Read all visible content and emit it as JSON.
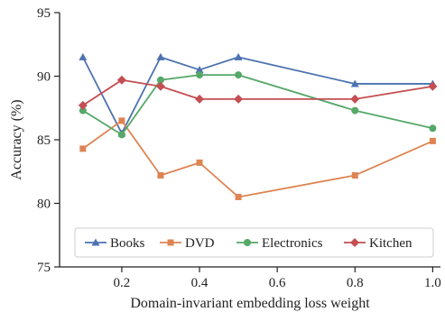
{
  "chart_data": {
    "type": "line",
    "title": "",
    "xlabel": "Domain-invariant embedding loss weight",
    "ylabel": "Accuracy (%)",
    "xlim": [
      0.04,
      1.02
    ],
    "ylim": [
      75,
      95
    ],
    "xticks": [
      0.2,
      0.4,
      0.6,
      0.8,
      1.0
    ],
    "xtick_labels": [
      "0.2",
      "0.4",
      "0.6",
      "0.8",
      "1.0"
    ],
    "yticks": [
      75,
      80,
      85,
      90,
      95
    ],
    "ytick_labels": [
      "75",
      "80",
      "85",
      "90",
      "95"
    ],
    "grid": false,
    "legend_position": "bottom",
    "series": [
      {
        "name": "Books",
        "color": "#4C72B0",
        "marker": "triangle",
        "x": [
          0.1,
          0.2,
          0.3,
          0.4,
          0.5,
          0.8,
          1.0
        ],
        "values": [
          91.5,
          85.5,
          91.5,
          90.5,
          91.5,
          89.4,
          89.4
        ]
      },
      {
        "name": "DVD",
        "color": "#DD8452",
        "marker": "square",
        "x": [
          0.1,
          0.2,
          0.3,
          0.4,
          0.5,
          0.8,
          1.0
        ],
        "values": [
          84.3,
          86.5,
          82.2,
          83.2,
          80.5,
          82.2,
          84.9
        ]
      },
      {
        "name": "Electronics",
        "color": "#55A868",
        "marker": "circle",
        "x": [
          0.1,
          0.2,
          0.3,
          0.4,
          0.5,
          0.8,
          1.0
        ],
        "values": [
          87.3,
          85.4,
          89.7,
          90.1,
          90.1,
          87.3,
          85.9
        ]
      },
      {
        "name": "Kitchen",
        "color": "#C44E52",
        "marker": "diamond",
        "x": [
          0.1,
          0.2,
          0.3,
          0.4,
          0.5,
          0.8,
          1.0
        ],
        "values": [
          87.7,
          89.7,
          89.2,
          88.2,
          88.2,
          88.2,
          89.2
        ]
      }
    ]
  }
}
